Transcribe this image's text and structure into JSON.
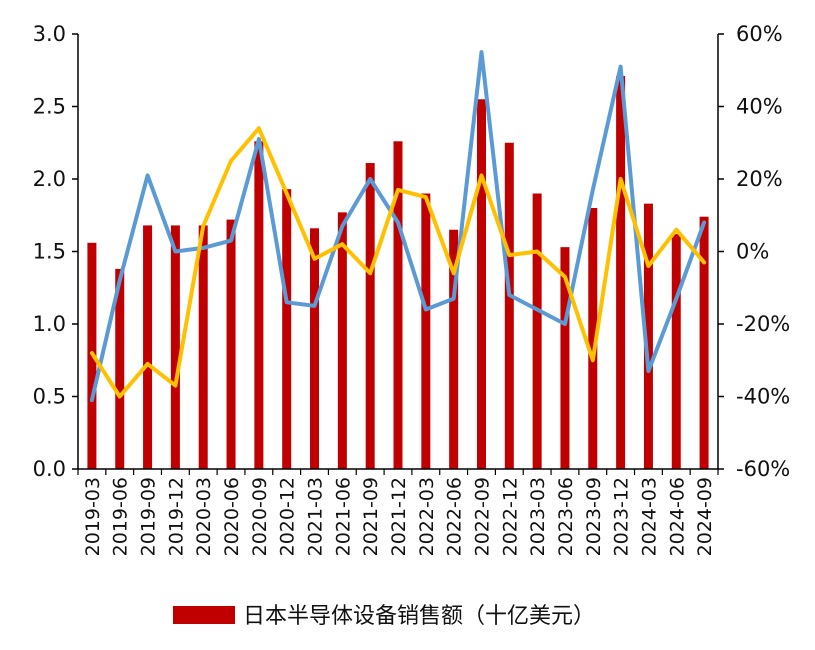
{
  "chart_data": {
    "type": "bar",
    "categories": [
      "2019-03",
      "2019-06",
      "2019-09",
      "2019-12",
      "2020-03",
      "2020-06",
      "2020-09",
      "2020-12",
      "2021-03",
      "2021-06",
      "2021-09",
      "2021-12",
      "2022-03",
      "2022-06",
      "2022-09",
      "2022-12",
      "2023-03",
      "2023-06",
      "2023-09",
      "2023-12",
      "2024-03",
      "2024-06",
      "2024-09"
    ],
    "series": [
      {
        "name": "日本半导体设备销售额（十亿美元）",
        "kind": "bar",
        "axis": "left",
        "color": "#C00000",
        "values": [
          1.56,
          1.38,
          1.68,
          1.68,
          1.68,
          1.72,
          2.26,
          1.93,
          1.66,
          1.77,
          2.11,
          2.26,
          1.9,
          1.65,
          2.55,
          2.25,
          1.9,
          1.53,
          1.8,
          2.71,
          1.83,
          1.62,
          1.74
        ]
      },
      {
        "kind": "line",
        "axis": "right",
        "color": "#5B9BD5",
        "values": [
          -41,
          -8,
          21,
          0,
          1,
          3,
          31,
          -14,
          -15,
          7,
          20,
          8,
          -16,
          -13,
          55,
          -12,
          -16,
          -20,
          17,
          51,
          -33,
          -13,
          8
        ]
      },
      {
        "kind": "line",
        "axis": "right",
        "color": "#FFC000",
        "values": [
          -28,
          -40,
          -31,
          -37,
          7,
          25,
          34,
          16,
          -2,
          2,
          -6,
          17,
          15,
          -6,
          21,
          -1,
          0,
          -7,
          -30,
          20,
          -4,
          6,
          -3
        ]
      }
    ],
    "left_axis": {
      "min": 0,
      "max": 3,
      "step": 0.5,
      "tick_labels": [
        "0.0",
        "0.5",
        "1.0",
        "1.5",
        "2.0",
        "2.5",
        "3.0"
      ]
    },
    "right_axis": {
      "min": -60,
      "max": 60,
      "step": 20,
      "tick_labels": [
        "-60%",
        "-40%",
        "-20%",
        "0%",
        "20%",
        "40%",
        "60%"
      ]
    },
    "legend": {
      "position": "bottom",
      "label": "日本半导体设备销售额（十亿美元）"
    },
    "grid": false
  }
}
